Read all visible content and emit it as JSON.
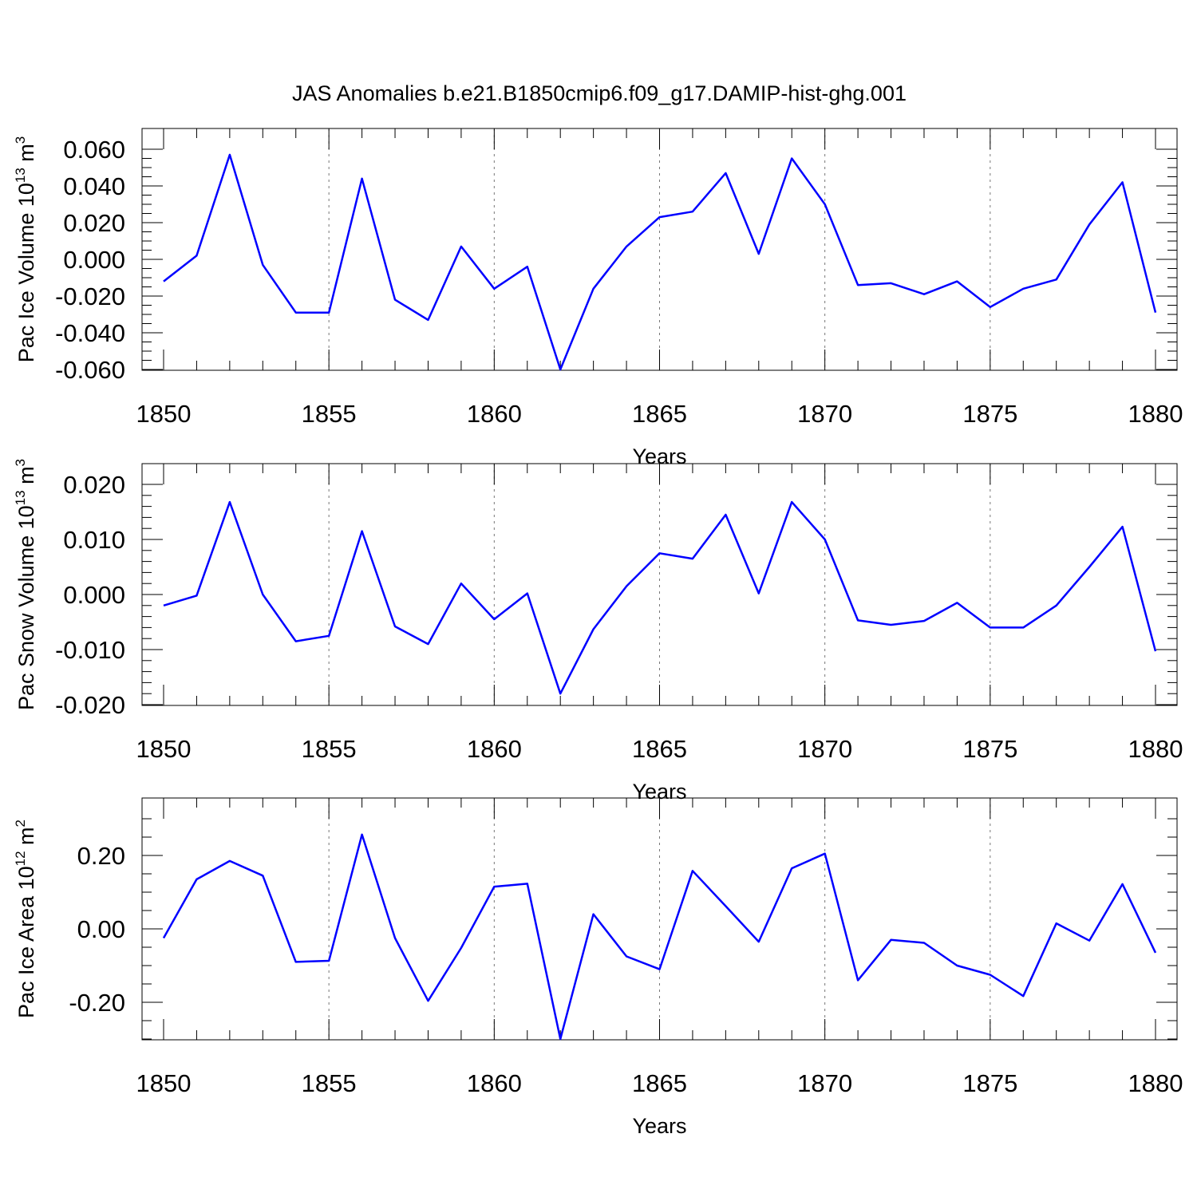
{
  "figure_title": "JAS Anomalies b.e21.B1850cmip6.f09_g17.DAMIP-hist-ghg.001",
  "colors": {
    "line": "#0000ff",
    "frame": "#000000",
    "grid": "#777777"
  },
  "chart_data": [
    {
      "type": "line",
      "title": "",
      "xlabel": "Years",
      "ylabel": "Pac Ice Volume 10",
      "ylabel_exp": "13",
      "ylabel_unit": " m",
      "ylabel_unit_exp": "3",
      "xlim": [
        1850,
        1880
      ],
      "ylim": [
        -0.06,
        0.06
      ],
      "x_ticks": [
        1850,
        1855,
        1860,
        1865,
        1870,
        1875,
        1880
      ],
      "y_ticks": [
        0.06,
        0.04,
        0.02,
        0.0,
        -0.02,
        -0.04,
        -0.06
      ],
      "y_tick_labels": [
        "0.060",
        "0.040",
        "0.020",
        "0.000",
        "-0.020",
        "-0.040",
        "-0.060"
      ],
      "y_minor_step": 0.005,
      "x": [
        1850,
        1851,
        1852,
        1853,
        1854,
        1855,
        1856,
        1857,
        1858,
        1859,
        1860,
        1861,
        1862,
        1863,
        1864,
        1865,
        1866,
        1867,
        1868,
        1869,
        1870,
        1871,
        1872,
        1873,
        1874,
        1875,
        1876,
        1877,
        1878,
        1879,
        1880
      ],
      "series": [
        {
          "values": [
            -0.012,
            0.002,
            0.057,
            -0.003,
            -0.029,
            -0.029,
            0.044,
            -0.022,
            -0.033,
            0.007,
            -0.016,
            -0.004,
            -0.06,
            -0.016,
            0.007,
            0.023,
            0.026,
            0.047,
            0.003,
            0.055,
            0.03,
            -0.014,
            -0.013,
            -0.019,
            -0.012,
            -0.026,
            -0.016,
            -0.011,
            0.019,
            0.042,
            -0.029
          ]
        }
      ],
      "grid": "vertical dashed at major x ticks",
      "legend": "none"
    },
    {
      "type": "line",
      "title": "",
      "xlabel": "Years",
      "ylabel": "Pac Snow Volume 10",
      "ylabel_exp": "13",
      "ylabel_unit": " m",
      "ylabel_unit_exp": "3",
      "xlim": [
        1850,
        1880
      ],
      "ylim": [
        -0.02,
        0.02
      ],
      "x_ticks": [
        1850,
        1855,
        1860,
        1865,
        1870,
        1875,
        1880
      ],
      "y_ticks": [
        0.02,
        0.01,
        0.0,
        -0.01,
        -0.02
      ],
      "y_tick_labels": [
        "0.020",
        "0.010",
        "0.000",
        "-0.010",
        "-0.020"
      ],
      "y_minor_step": 0.002,
      "x": [
        1850,
        1851,
        1852,
        1853,
        1854,
        1855,
        1856,
        1857,
        1858,
        1859,
        1860,
        1861,
        1862,
        1863,
        1864,
        1865,
        1866,
        1867,
        1868,
        1869,
        1870,
        1871,
        1872,
        1873,
        1874,
        1875,
        1876,
        1877,
        1878,
        1879,
        1880
      ],
      "series": [
        {
          "values": [
            -0.002,
            -0.0002,
            0.0168,
            0.0,
            -0.0085,
            -0.0075,
            0.0115,
            -0.0058,
            -0.009,
            0.002,
            -0.0045,
            0.0002,
            -0.018,
            -0.0063,
            0.0015,
            0.0075,
            0.0065,
            0.0145,
            0.0002,
            0.0168,
            0.01,
            -0.0047,
            -0.0055,
            -0.0048,
            -0.0015,
            -0.006,
            -0.006,
            -0.002,
            0.005,
            0.0123,
            -0.0103
          ]
        }
      ],
      "grid": "vertical dashed at major x ticks",
      "legend": "none"
    },
    {
      "type": "line",
      "title": "",
      "xlabel": "Years",
      "ylabel": "Pac Ice Area 10",
      "ylabel_exp": "12",
      "ylabel_unit": " m",
      "ylabel_unit_exp": "2",
      "xlim": [
        1850,
        1880
      ],
      "ylim": [
        -0.3,
        0.3
      ],
      "x_ticks": [
        1850,
        1855,
        1860,
        1865,
        1870,
        1875,
        1880
      ],
      "y_ticks": [
        0.2,
        0.0,
        -0.2
      ],
      "y_tick_labels": [
        "0.20",
        "0.00",
        "-0.20"
      ],
      "y_minor_step": 0.05,
      "x": [
        1850,
        1851,
        1852,
        1853,
        1854,
        1855,
        1856,
        1857,
        1858,
        1859,
        1860,
        1861,
        1862,
        1863,
        1864,
        1865,
        1866,
        1867,
        1868,
        1869,
        1870,
        1871,
        1872,
        1873,
        1874,
        1875,
        1876,
        1877,
        1878,
        1879,
        1880
      ],
      "series": [
        {
          "values": [
            -0.025,
            0.135,
            0.185,
            0.145,
            -0.09,
            -0.087,
            0.257,
            -0.025,
            -0.196,
            -0.052,
            0.115,
            0.123,
            -0.3,
            0.04,
            -0.075,
            -0.11,
            0.158,
            0.062,
            -0.035,
            0.165,
            0.205,
            -0.14,
            -0.03,
            -0.038,
            -0.1,
            -0.125,
            -0.183,
            0.015,
            -0.032,
            0.122,
            -0.065
          ]
        }
      ],
      "grid": "vertical dashed at major x ticks",
      "legend": "none"
    }
  ]
}
